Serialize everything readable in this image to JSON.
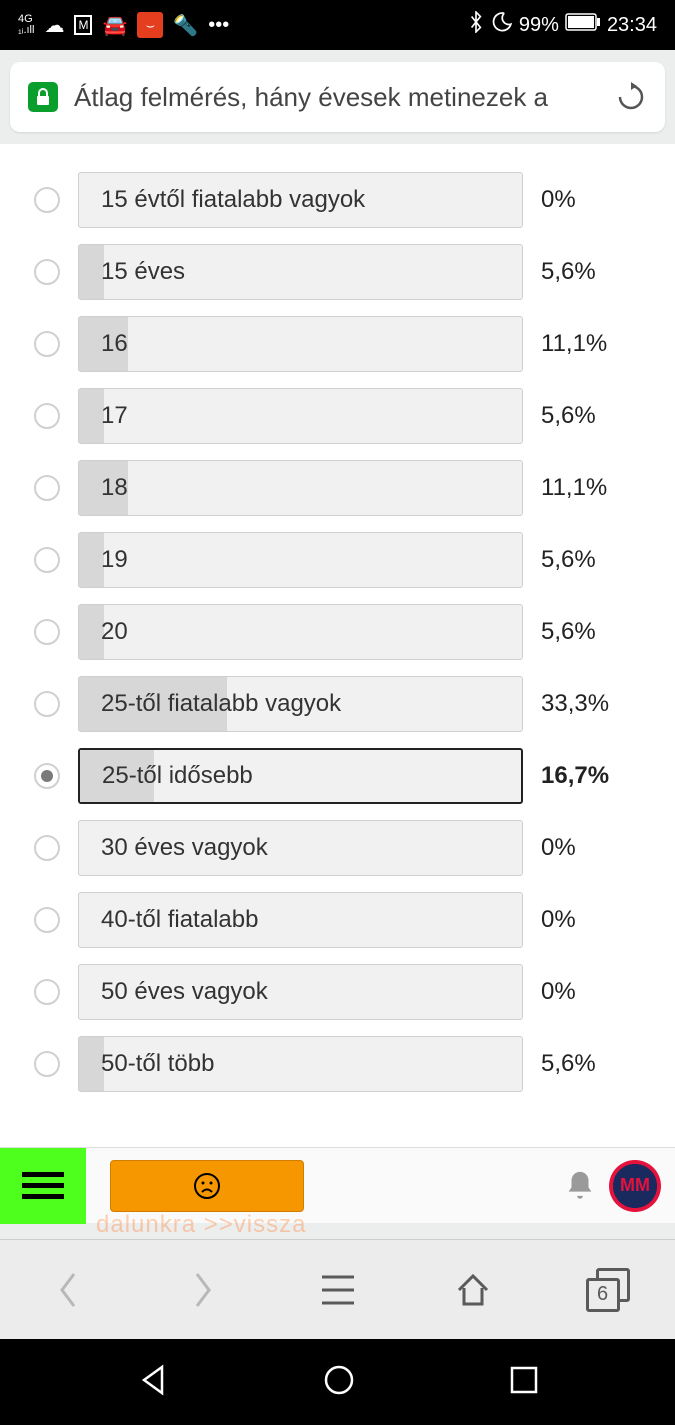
{
  "status_bar": {
    "network": "4G",
    "battery_pct": "99%",
    "time": "23:34"
  },
  "url_bar": {
    "title": "Átlag felmérés, hány évesek metinezek a"
  },
  "poll": {
    "options": [
      {
        "label": "15 évtől fiatalabb vagyok",
        "pct": "0%",
        "fill_pct": 0,
        "selected": false,
        "bold": false
      },
      {
        "label": "15 éves",
        "pct": "5,6%",
        "fill_pct": 5.6,
        "selected": false,
        "bold": false
      },
      {
        "label": "16",
        "pct": "11,1%",
        "fill_pct": 11.1,
        "selected": false,
        "bold": false
      },
      {
        "label": "17",
        "pct": "5,6%",
        "fill_pct": 5.6,
        "selected": false,
        "bold": false
      },
      {
        "label": "18",
        "pct": "11,1%",
        "fill_pct": 11.1,
        "selected": false,
        "bold": false
      },
      {
        "label": "19",
        "pct": "5,6%",
        "fill_pct": 5.6,
        "selected": false,
        "bold": false
      },
      {
        "label": "20",
        "pct": "5,6%",
        "fill_pct": 5.6,
        "selected": false,
        "bold": false
      },
      {
        "label": "25-től fiatalabb vagyok",
        "pct": "33,3%",
        "fill_pct": 33.3,
        "selected": false,
        "bold": false
      },
      {
        "label": "25-től idősebb",
        "pct": "16,7%",
        "fill_pct": 16.7,
        "selected": true,
        "bold": true
      },
      {
        "label": "30 éves vagyok",
        "pct": "0%",
        "fill_pct": 0,
        "selected": false,
        "bold": false
      },
      {
        "label": "40-től fiatalabb",
        "pct": "0%",
        "fill_pct": 0,
        "selected": false,
        "bold": false
      },
      {
        "label": "50 éves vagyok",
        "pct": "0%",
        "fill_pct": 0,
        "selected": false,
        "bold": false
      },
      {
        "label": "50-től több",
        "pct": "5,6%",
        "fill_pct": 5.6,
        "selected": false,
        "bold": false
      }
    ]
  },
  "page_footer": {
    "partial_text": "dalunkra >>vissza",
    "avatar_text": "MM"
  },
  "browser_nav": {
    "tab_count": "6"
  },
  "colors": {
    "bar_bg": "#f1f1f1",
    "bar_fill": "#d7d7d7",
    "bar_border": "#cfcfcf",
    "menu_green": "#4eff1e",
    "orange_btn": "#f79700"
  }
}
